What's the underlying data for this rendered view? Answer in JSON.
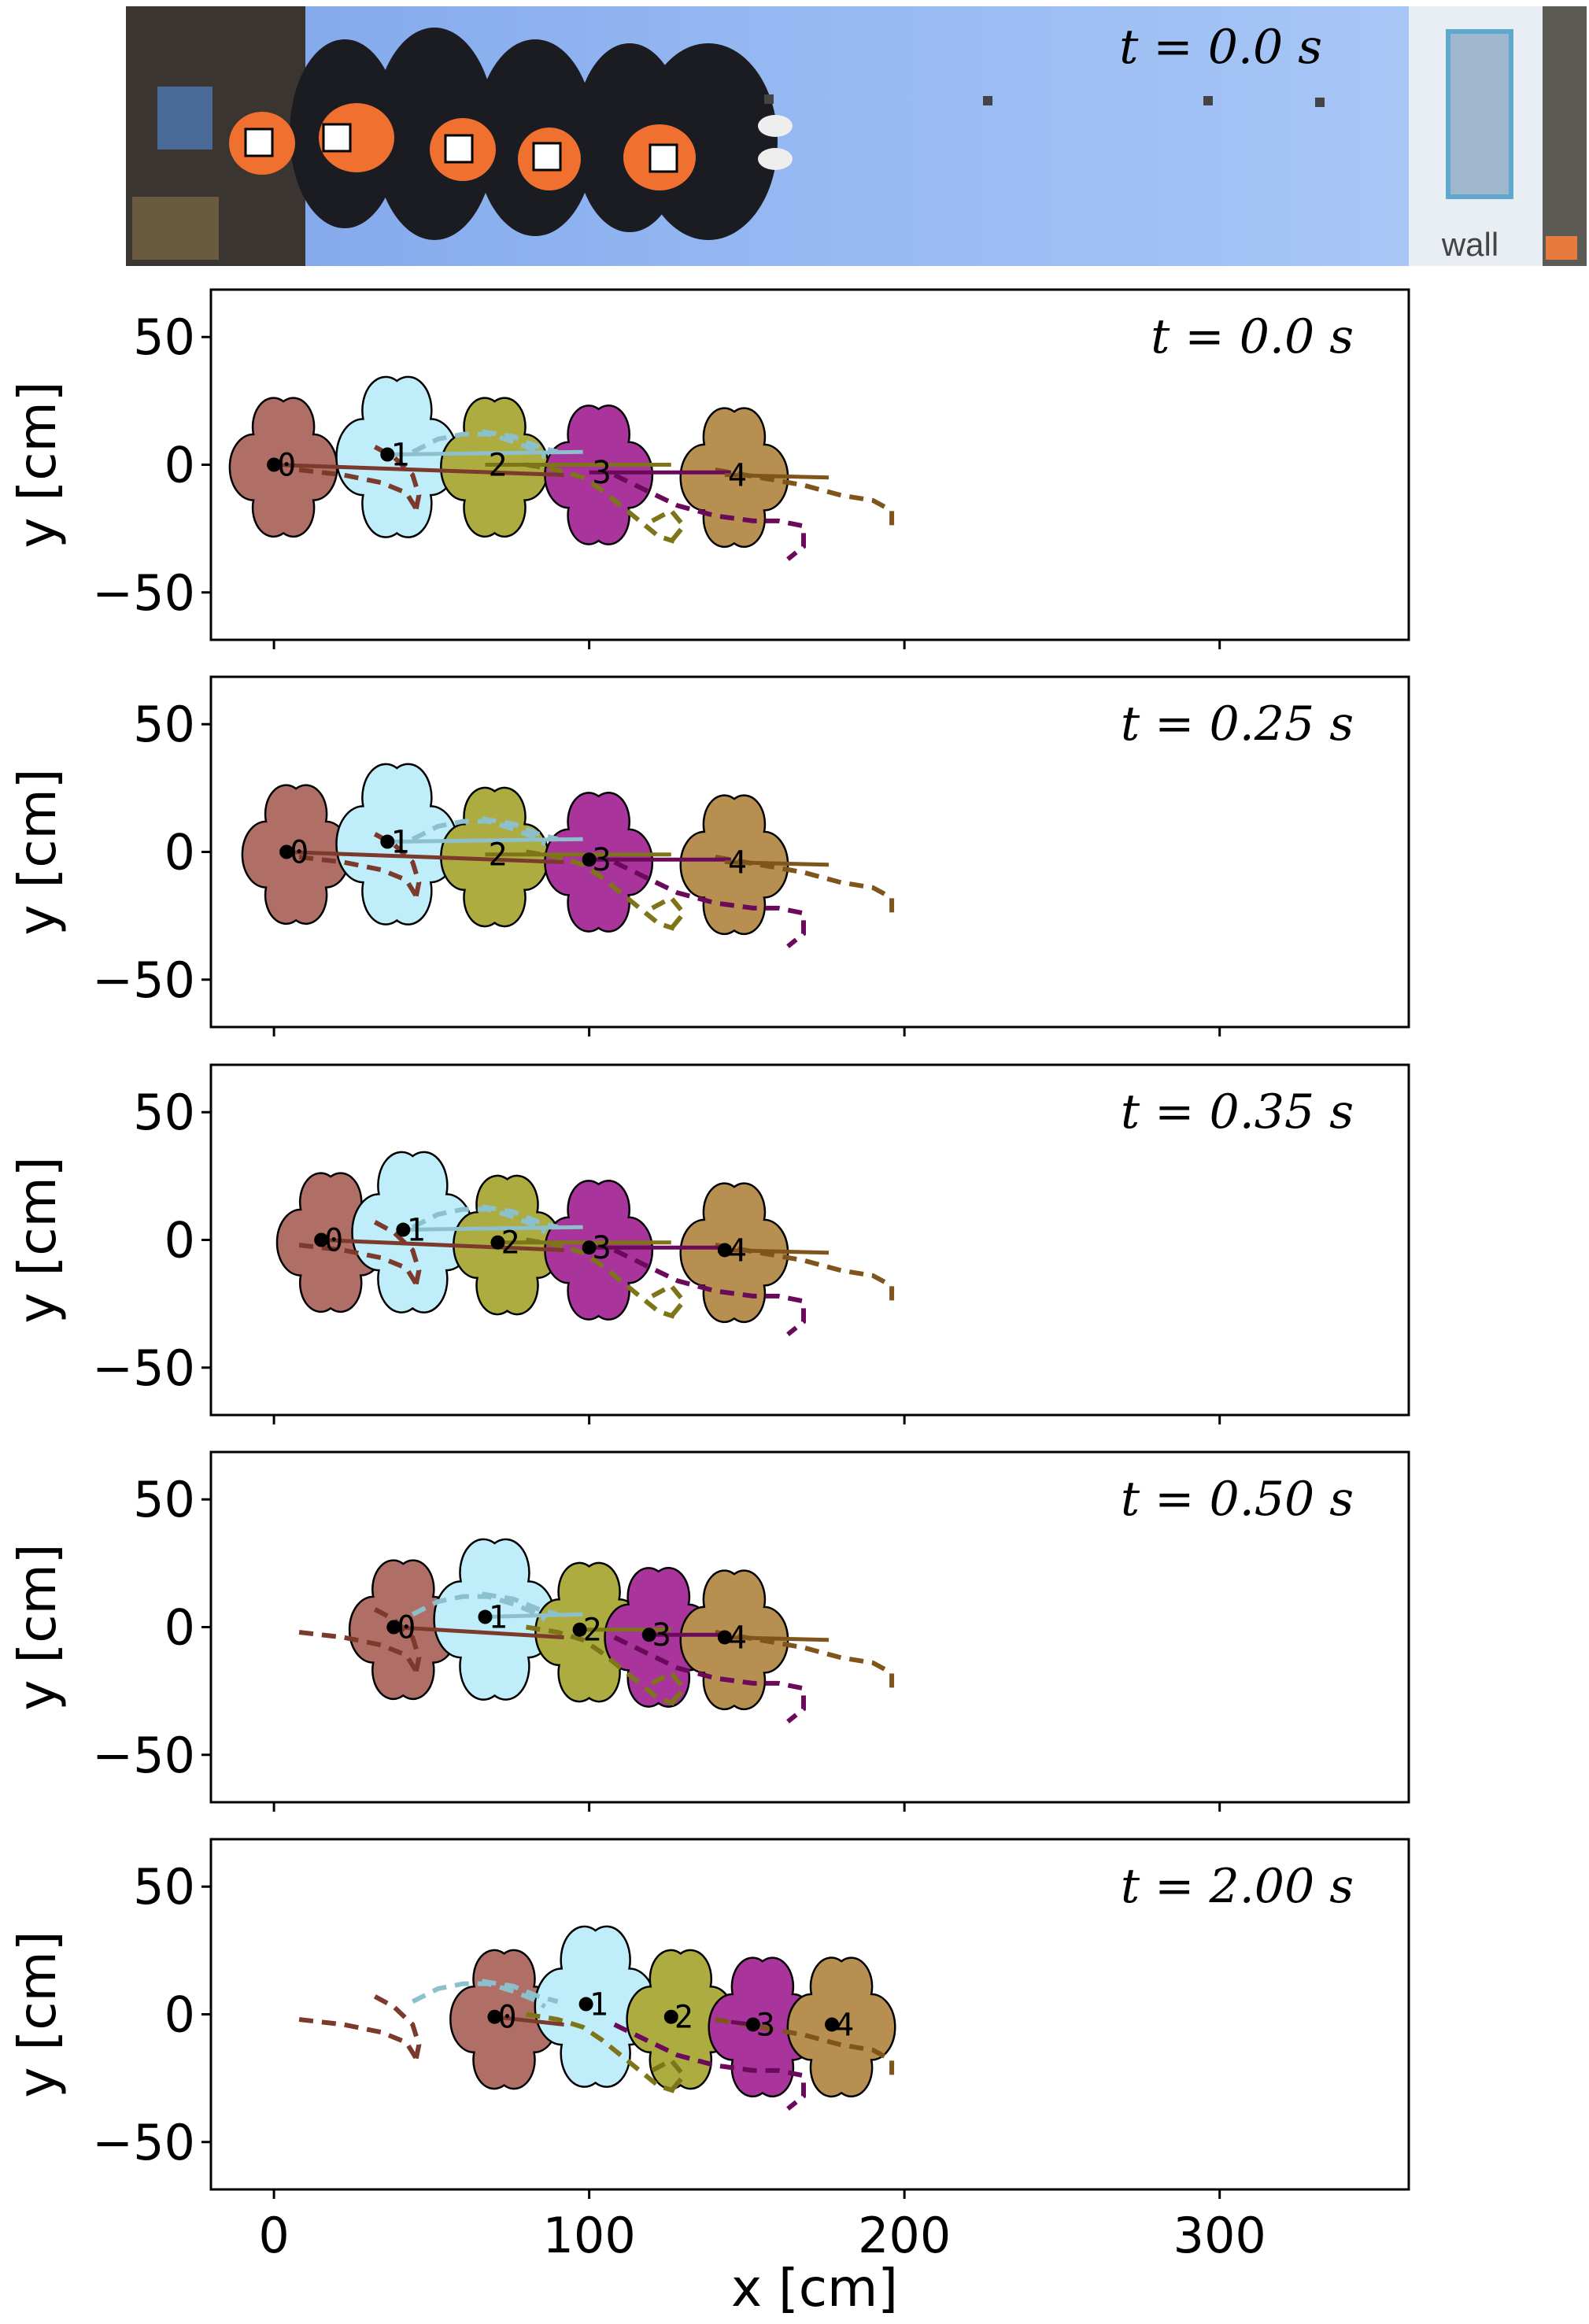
{
  "photo": {
    "time_label": "t = 0.0 s",
    "wall_label": "wall"
  },
  "chart_data": {
    "type": "line",
    "xlabel": "x [cm]",
    "ylabel": "y [cm]",
    "xlim": [
      -20,
      360
    ],
    "ylim": [
      -55,
      55
    ],
    "xticks": [
      0,
      100,
      200,
      300
    ],
    "yticks": [
      50,
      0,
      -50
    ],
    "grid": false,
    "colors": {
      "p0": "#b06f66",
      "p1": "#bfeefa",
      "p2": "#acac40",
      "p3": "#a9349c",
      "p4": "#b78f50",
      "l0": "#7b3a2b",
      "l1": "#8cc0cc",
      "l2": "#7e7418",
      "l3": "#6b0a5a",
      "l4": "#80551c"
    },
    "dashed_paths": [
      {
        "id": 0,
        "points": [
          [
            8,
            -2
          ],
          [
            22,
            -4
          ],
          [
            34,
            -7
          ],
          [
            42,
            -11
          ],
          [
            45,
            -17
          ]
        ]
      },
      {
        "id": 0,
        "points": [
          [
            32,
            7
          ],
          [
            38,
            3
          ],
          [
            44,
            -4
          ],
          [
            46,
            -12
          ],
          [
            45,
            -18
          ]
        ]
      },
      {
        "id": 1,
        "points": [
          [
            44,
            5
          ],
          [
            52,
            10
          ],
          [
            60,
            12
          ],
          [
            68,
            12
          ],
          [
            76,
            9
          ],
          [
            82,
            6
          ],
          [
            86,
            3
          ]
        ]
      },
      {
        "id": 1,
        "points": [
          [
            66,
            13
          ],
          [
            76,
            11
          ],
          [
            84,
            7
          ],
          [
            90,
            5
          ]
        ]
      },
      {
        "id": 2,
        "points": [
          [
            80,
            0
          ],
          [
            90,
            -2
          ],
          [
            98,
            -5
          ],
          [
            104,
            -10
          ],
          [
            110,
            -16
          ],
          [
            116,
            -22
          ],
          [
            122,
            -28
          ],
          [
            127,
            -30
          ]
        ]
      },
      {
        "id": 2,
        "points": [
          [
            120,
            -22
          ],
          [
            126,
            -18
          ],
          [
            130,
            -24
          ],
          [
            126,
            -30
          ]
        ]
      },
      {
        "id": 3,
        "points": [
          [
            108,
            -4
          ],
          [
            118,
            -10
          ],
          [
            128,
            -16
          ],
          [
            140,
            -20
          ],
          [
            152,
            -22
          ],
          [
            160,
            -22
          ],
          [
            168,
            -24
          ],
          [
            168,
            -32
          ],
          [
            163,
            -37
          ]
        ]
      },
      {
        "id": 4,
        "points": [
          [
            140,
            -2
          ],
          [
            154,
            -5
          ],
          [
            168,
            -8
          ],
          [
            180,
            -12
          ],
          [
            190,
            -14
          ],
          [
            196,
            -18
          ],
          [
            196,
            -24
          ]
        ]
      }
    ],
    "panels": [
      {
        "time_label": "t = 0.0 s",
        "peers": [
          {
            "id": 0,
            "label": "0",
            "x": 0,
            "y": 0,
            "line_end": [
              92,
              -4
            ],
            "dot": true
          },
          {
            "id": 1,
            "label": "1",
            "x": 36,
            "y": 4,
            "line_end": [
              98,
              5
            ],
            "dot": true
          },
          {
            "id": 2,
            "label": "2",
            "x": 67,
            "y": 0,
            "line_end": [
              126,
              0
            ],
            "dot": false
          },
          {
            "id": 3,
            "label": "3",
            "x": 100,
            "y": -3,
            "line_end": [
              145,
              -3
            ],
            "dot": false
          },
          {
            "id": 4,
            "label": "4",
            "x": 143,
            "y": -4,
            "line_end": [
              176,
              -5
            ],
            "dot": false
          }
        ]
      },
      {
        "time_label": "t = 0.25 s",
        "peers": [
          {
            "id": 0,
            "label": "0",
            "x": 4,
            "y": 0,
            "line_end": [
              92,
              -4
            ],
            "dot": true
          },
          {
            "id": 1,
            "label": "1",
            "x": 36,
            "y": 4,
            "line_end": [
              98,
              5
            ],
            "dot": true
          },
          {
            "id": 2,
            "label": "2",
            "x": 67,
            "y": -1,
            "line_end": [
              126,
              -1
            ],
            "dot": false
          },
          {
            "id": 3,
            "label": "3",
            "x": 100,
            "y": -3,
            "line_end": [
              145,
              -3
            ],
            "dot": true
          },
          {
            "id": 4,
            "label": "4",
            "x": 143,
            "y": -4,
            "line_end": [
              176,
              -5
            ],
            "dot": false
          }
        ]
      },
      {
        "time_label": "t = 0.35 s",
        "peers": [
          {
            "id": 0,
            "label": "0",
            "x": 15,
            "y": 0,
            "line_end": [
              92,
              -4
            ],
            "dot": true
          },
          {
            "id": 1,
            "label": "1",
            "x": 41,
            "y": 4,
            "line_end": [
              98,
              5
            ],
            "dot": true
          },
          {
            "id": 2,
            "label": "2",
            "x": 71,
            "y": -1,
            "line_end": [
              126,
              -1
            ],
            "dot": true
          },
          {
            "id": 3,
            "label": "3",
            "x": 100,
            "y": -3,
            "line_end": [
              145,
              -3
            ],
            "dot": true
          },
          {
            "id": 4,
            "label": "4",
            "x": 143,
            "y": -4,
            "line_end": [
              176,
              -5
            ],
            "dot": true
          }
        ]
      },
      {
        "time_label": "t = 0.50 s",
        "peers": [
          {
            "id": 0,
            "label": "0",
            "x": 38,
            "y": 0,
            "line_end": [
              92,
              -4
            ],
            "dot": true
          },
          {
            "id": 1,
            "label": "1",
            "x": 67,
            "y": 4,
            "line_end": [
              98,
              5
            ],
            "dot": true
          },
          {
            "id": 2,
            "label": "2",
            "x": 97,
            "y": -1,
            "line_end": [
              126,
              -1
            ],
            "dot": true
          },
          {
            "id": 3,
            "label": "3",
            "x": 119,
            "y": -3,
            "line_end": [
              145,
              -3
            ],
            "dot": true
          },
          {
            "id": 4,
            "label": "4",
            "x": 143,
            "y": -4,
            "line_end": [
              176,
              -5
            ],
            "dot": true
          }
        ]
      },
      {
        "time_label": "t = 2.00 s",
        "peers": [
          {
            "id": 0,
            "label": "0",
            "x": 70,
            "y": -1,
            "line_end": [
              92,
              -4
            ],
            "dot": true
          },
          {
            "id": 1,
            "label": "1",
            "x": 99,
            "y": 4,
            "line_end": [
              98,
              5
            ],
            "dot": true
          },
          {
            "id": 2,
            "label": "2",
            "x": 126,
            "y": -1,
            "line_end": [
              126,
              -1
            ],
            "dot": true
          },
          {
            "id": 3,
            "label": "3",
            "x": 152,
            "y": -4,
            "line_end": [
              145,
              -3
            ],
            "dot": true
          },
          {
            "id": 4,
            "label": "4",
            "x": 177,
            "y": -4,
            "line_end": [
              176,
              -5
            ],
            "dot": true
          }
        ]
      }
    ]
  }
}
